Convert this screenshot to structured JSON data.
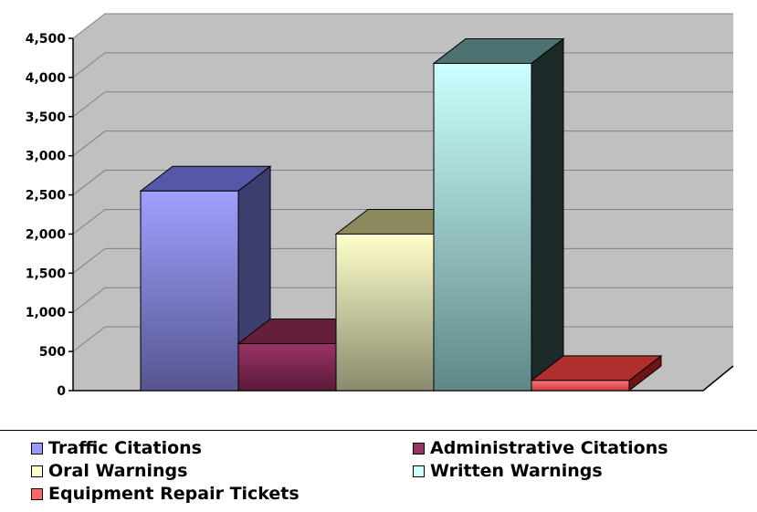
{
  "chart_data": {
    "type": "bar",
    "categories": [
      "Traffic Citations",
      "Administrative Citations",
      "Oral Warnings",
      "Written Warnings",
      "Equipment Repair Tickets"
    ],
    "values": [
      2550,
      600,
      2000,
      4180,
      130
    ],
    "ylim": [
      0,
      4500
    ],
    "yticks": [
      "4,500",
      "4,000",
      "3,500",
      "3,000",
      "2,500",
      "2,000",
      "1,500",
      "1,000",
      "500",
      "0"
    ],
    "ytick_values": [
      4500,
      4000,
      3500,
      3000,
      2500,
      2000,
      1500,
      1000,
      500,
      0
    ],
    "grid": true,
    "three_d": true,
    "legend_position": "bottom",
    "legend": [
      {
        "label": "Traffic Citations",
        "color": "#9999ff"
      },
      {
        "label": "Administrative Citations",
        "color": "#993366"
      },
      {
        "label": "Oral Warnings",
        "color": "#ffffcc"
      },
      {
        "label": "Written Warnings",
        "color": "#ccffff"
      },
      {
        "label": "Equipment Repair Tickets",
        "color": "#ff6666"
      }
    ],
    "colors": {
      "wall": "#c0c0c0",
      "front": [
        [
          "#a0a0ff",
          "#55558f"
        ],
        [
          "#993366",
          "#5a1a38"
        ],
        [
          "#ffffcc",
          "#8a8a6e"
        ],
        [
          "#ccffff",
          "#5f8888"
        ],
        [
          "#ff7777",
          "#cc3c3c"
        ]
      ],
      "side": [
        "#3e3e6e",
        "#3f0a22",
        "#4a4a38",
        "#1c2a2a",
        "#6e1414"
      ],
      "top": [
        "#5757a8",
        "#661e3d",
        "#8a8a5c",
        "#4c7272",
        "#b03030"
      ]
    }
  }
}
